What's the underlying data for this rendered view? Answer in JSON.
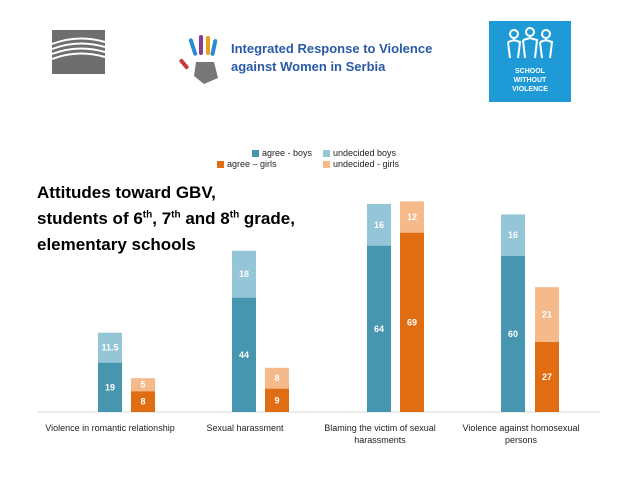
{
  "header": {
    "org_name_line1": "Integrated Response to Violence",
    "org_name_line2": "against Women in Serbia",
    "school_logo_line1": "SCHOOL",
    "school_logo_line2": "WITHOUT",
    "school_logo_line3": "VIOLENCE"
  },
  "colors": {
    "boys_agree": "#4796b0",
    "boys_undecided": "#95c6d8",
    "girls_agree": "#e16d12",
    "girls_undecided": "#f5b98a",
    "school_logo_bg": "#1e9ad6",
    "org_text": "#2a5aa6"
  },
  "chart_data": {
    "type": "bar",
    "stacked": true,
    "title_parts": [
      "Attitudes toward GBV,",
      "students of 6",
      "th",
      ", 7",
      "th",
      " and 8",
      "th",
      " grade,",
      "elementary schools"
    ],
    "categories": [
      [
        "Violence in romantic relationship"
      ],
      [
        "Sexual harassment"
      ],
      [
        "Blaming the victim of sexual",
        "harassments"
      ],
      [
        "Violence against homosexual",
        "persons"
      ]
    ],
    "series": [
      {
        "name": "agree - boys",
        "group": "boys",
        "values": [
          19,
          44,
          64,
          60
        ]
      },
      {
        "name": "undecided boys",
        "group": "boys",
        "values": [
          11.5,
          18,
          16,
          16
        ]
      },
      {
        "name": "agree – girls",
        "group": "girls",
        "values": [
          8,
          9,
          69,
          27
        ]
      },
      {
        "name": "undecided - girls",
        "group": "girls",
        "values": [
          5,
          8,
          12,
          21
        ]
      }
    ],
    "legend": {
      "agree_boys": "agree - boys",
      "undecided_boys": "undecided boys",
      "agree_girls": "agree – girls",
      "undecided_girls": "undecided - girls",
      "position": "top-center"
    },
    "ylim": [
      0,
      100
    ],
    "grid": false,
    "xlabel": "",
    "ylabel": ""
  }
}
